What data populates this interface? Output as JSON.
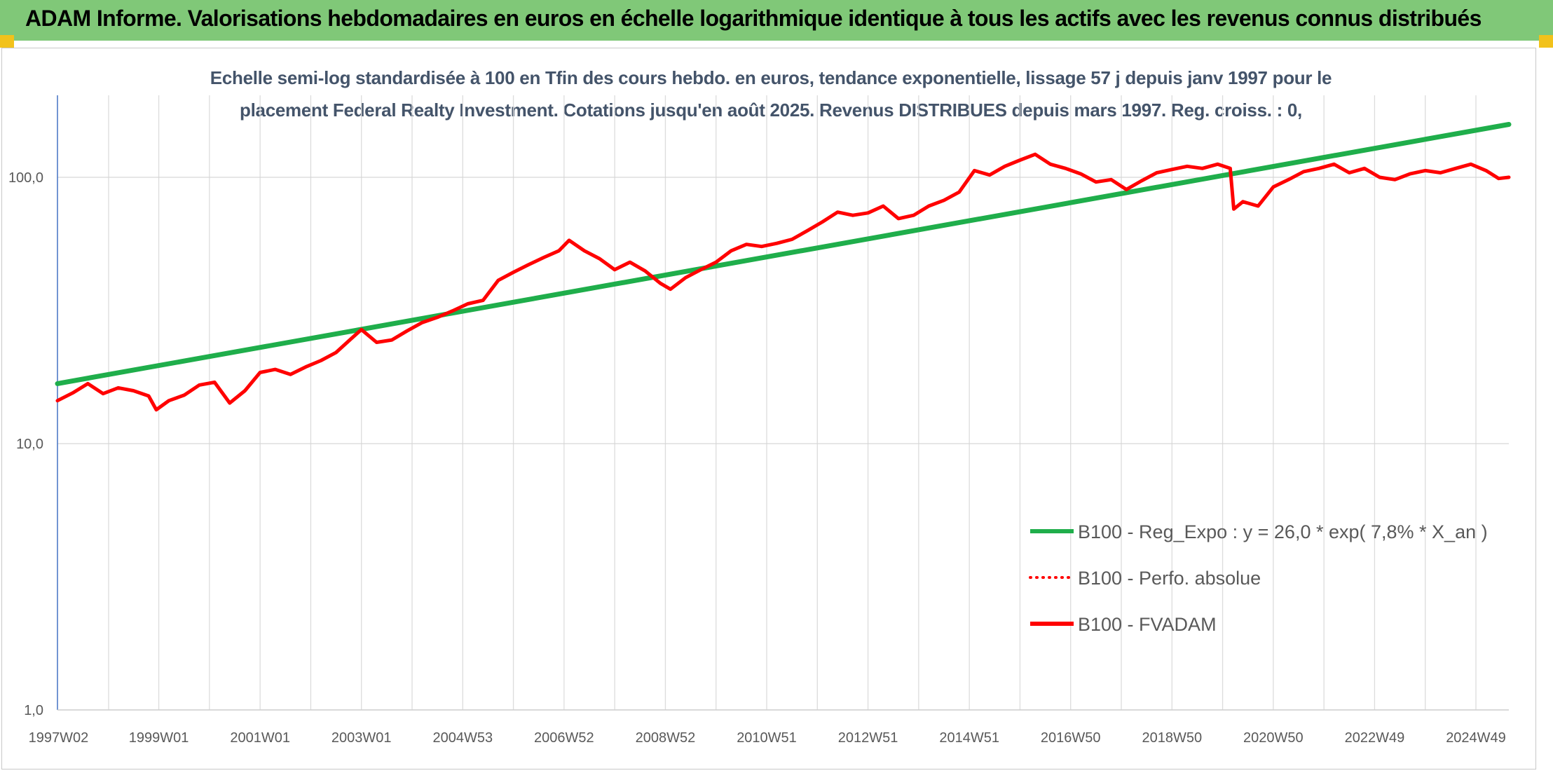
{
  "header": {
    "title": "ADAM Informe. Valorisations hebdomadaires en euros en échelle logarithmique identique à tous les actifs avec les revenus connus distribués"
  },
  "chart_data": {
    "type": "line",
    "title_line1": "Echelle semi-log standardisée à 100 en Tfin des cours hebdo. en euros, tendance exponentielle, lissage 57 j depuis janv 1997 pour le",
    "title_line2": "placement Federal Realty Investment. Cotations jusqu'en août 2025. Revenus DISTRIBUES depuis mars 1997. Reg. croiss. : 0,",
    "yscale": "log",
    "ylim": [
      1,
      200
    ],
    "xlim": [
      1997.0,
      2025.65
    ],
    "grid": true,
    "legend_position": "bottom-right",
    "y_ticks": [
      {
        "value": 1,
        "label": "1,0"
      },
      {
        "value": 10,
        "label": "10,0"
      },
      {
        "value": 100,
        "label": "100,0"
      }
    ],
    "x_ticks": [
      {
        "value": 1997.02,
        "label": "1997W02"
      },
      {
        "value": 1999.0,
        "label": "1999W01"
      },
      {
        "value": 2001.0,
        "label": "2001W01"
      },
      {
        "value": 2003.0,
        "label": "2003W01"
      },
      {
        "value": 2005.0,
        "label": "2004W53"
      },
      {
        "value": 2007.0,
        "label": "2006W52"
      },
      {
        "value": 2009.0,
        "label": "2008W52"
      },
      {
        "value": 2011.0,
        "label": "2010W51"
      },
      {
        "value": 2013.0,
        "label": "2012W51"
      },
      {
        "value": 2015.0,
        "label": "2014W51"
      },
      {
        "value": 2017.0,
        "label": "2016W50"
      },
      {
        "value": 2019.0,
        "label": "2018W50"
      },
      {
        "value": 2021.0,
        "label": "2020W50"
      },
      {
        "value": 2023.0,
        "label": "2022W49"
      },
      {
        "value": 2025.0,
        "label": "2024W49"
      }
    ],
    "series": [
      {
        "name": "B100 - Reg_Expo : y = 26,0 * exp( 7,8% *  X_an )",
        "color": "#1fae4b",
        "style": "solid",
        "x": [
          1997.0,
          2025.65
        ],
        "y": [
          16.8,
          158
        ]
      },
      {
        "name": "B100 - Perfo. absolue",
        "color": "#ff0000",
        "style": "dotted",
        "x": [],
        "y": []
      },
      {
        "name": "B100 - FVADAM",
        "color": "#ff0000",
        "style": "solid",
        "x": [
          1997.0,
          1997.3,
          1997.6,
          1997.9,
          1998.2,
          1998.5,
          1998.8,
          1998.95,
          1999.2,
          1999.5,
          1999.8,
          2000.1,
          2000.4,
          2000.7,
          2001.0,
          2001.3,
          2001.6,
          2001.9,
          2002.2,
          2002.5,
          2002.8,
          2003.0,
          2003.3,
          2003.6,
          2003.9,
          2004.2,
          2004.5,
          2004.8,
          2005.1,
          2005.4,
          2005.7,
          2006.0,
          2006.3,
          2006.6,
          2006.9,
          2007.1,
          2007.4,
          2007.7,
          2008.0,
          2008.3,
          2008.6,
          2008.9,
          2009.1,
          2009.4,
          2009.7,
          2010.0,
          2010.3,
          2010.6,
          2010.9,
          2011.2,
          2011.5,
          2011.8,
          2012.1,
          2012.4,
          2012.7,
          2013.0,
          2013.3,
          2013.6,
          2013.9,
          2014.2,
          2014.5,
          2014.8,
          2015.1,
          2015.4,
          2015.7,
          2016.0,
          2016.3,
          2016.6,
          2016.9,
          2017.2,
          2017.5,
          2017.8,
          2018.1,
          2018.4,
          2018.7,
          2019.0,
          2019.3,
          2019.6,
          2019.9,
          2020.15,
          2020.22,
          2020.4,
          2020.7,
          2021.0,
          2021.3,
          2021.6,
          2021.9,
          2022.2,
          2022.5,
          2022.8,
          2023.1,
          2023.4,
          2023.7,
          2024.0,
          2024.3,
          2024.6,
          2024.9,
          2025.2,
          2025.45,
          2025.65
        ],
        "y": [
          14.5,
          15.5,
          16.8,
          15.4,
          16.2,
          15.8,
          15.1,
          13.4,
          14.5,
          15.2,
          16.6,
          17.0,
          14.2,
          15.8,
          18.5,
          19.0,
          18.2,
          19.4,
          20.5,
          22.0,
          24.8,
          26.8,
          24.0,
          24.5,
          26.5,
          28.5,
          29.8,
          31.5,
          33.5,
          34.5,
          41.0,
          44.0,
          47.0,
          50.0,
          53.0,
          58.0,
          53.0,
          49.5,
          45.0,
          48.0,
          44.5,
          40.0,
          38.0,
          42.0,
          45.0,
          48.0,
          53.0,
          56.0,
          55.0,
          56.5,
          58.5,
          63.0,
          68.0,
          74.0,
          72.0,
          73.5,
          78.0,
          70.0,
          72.0,
          78.0,
          82.0,
          88.0,
          106.0,
          102.0,
          110.0,
          116.0,
          122.0,
          112.0,
          108.0,
          103.0,
          96.0,
          98.0,
          90.0,
          97.0,
          104.0,
          107.0,
          110.0,
          108.0,
          112.0,
          108.0,
          76.0,
          81.0,
          78.0,
          92.0,
          98.0,
          105.0,
          108.0,
          112.0,
          104.0,
          108.0,
          100.0,
          98.0,
          103.0,
          106.0,
          104.0,
          108.0,
          112.0,
          106.0,
          99.0,
          100.0
        ]
      }
    ]
  }
}
